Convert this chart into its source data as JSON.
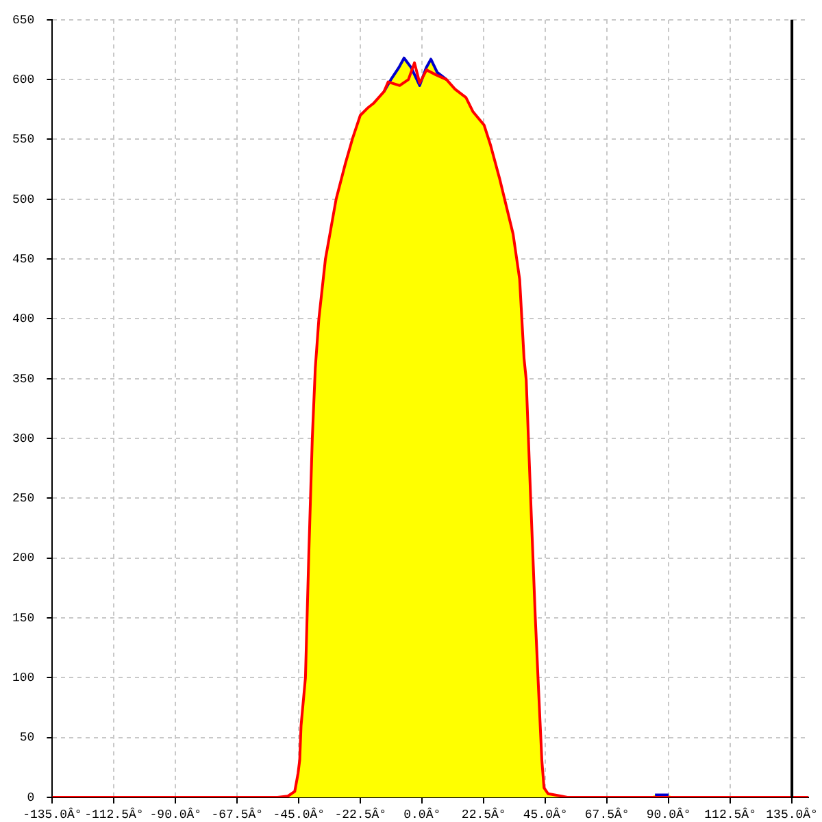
{
  "chart_data": {
    "xlim": [
      -135,
      141
    ],
    "xticks": [
      {
        "value": -135,
        "label": "-135.0Â°"
      },
      {
        "value": -112.5,
        "label": "-112.5Â°"
      },
      {
        "value": -90,
        "label": "-90.0Â°"
      },
      {
        "value": -67.5,
        "label": "-67.5Â°"
      },
      {
        "value": -45,
        "label": "-45.0Â°"
      },
      {
        "value": -22.5,
        "label": "-22.5Â°"
      },
      {
        "value": 0,
        "label": "0.0Â°"
      },
      {
        "value": 22.5,
        "label": "22.5Â°"
      },
      {
        "value": 45,
        "label": "45.0Â°"
      },
      {
        "value": 67.5,
        "label": "67.5Â°"
      },
      {
        "value": 90,
        "label": "90.0Â°"
      },
      {
        "value": 112.5,
        "label": "112.5Â°"
      },
      {
        "value": 135,
        "label": "135.0Â°"
      }
    ],
    "ylim": [
      0,
      650
    ],
    "yticks": [
      0,
      50,
      100,
      150,
      200,
      250,
      300,
      350,
      400,
      450,
      500,
      550,
      600,
      650
    ],
    "grid": true,
    "type": "line",
    "legend": false,
    "marker": "none",
    "line_style": "solid",
    "ref_lines": [
      {
        "axis": "x",
        "value": 135,
        "color": "#000000"
      }
    ],
    "series": [
      {
        "type": "line",
        "color": "#ff0000",
        "x": [
          -135,
          -52.8,
          -49,
          -46.5,
          -45.3,
          -44.7,
          -44.2,
          -42.6,
          -41.4,
          -40.1,
          -39,
          -37.7,
          -35.3,
          -31.4,
          -28,
          -25.5,
          -22.6,
          -20,
          -17.8,
          -13.9,
          -12.4,
          -8.2,
          -5,
          -2.8,
          -0.9,
          1.6,
          5,
          8.9,
          12,
          16,
          18.6,
          22.6,
          25,
          28.3,
          33.2,
          35.6,
          37.2,
          38,
          39.6,
          41.3,
          42.5,
          43.7,
          44.5,
          46,
          50.8,
          53,
          141
        ],
        "values": [
          0,
          0,
          1,
          5,
          20,
          31,
          60,
          100,
          201,
          300,
          359,
          400,
          450,
          500,
          530,
          550,
          570,
          576,
          580,
          590,
          598,
          595,
          600,
          614,
          597,
          608,
          604,
          600,
          592,
          585,
          573,
          562,
          545,
          517,
          471,
          433,
          367,
          349,
          251,
          151,
          90,
          31,
          8,
          3,
          1,
          0,
          0
        ]
      },
      {
        "type": "line",
        "color": "#0000cc",
        "x": [
          -13.9,
          -11.4,
          -8.5,
          -6.6,
          -4,
          -0.9,
          1.5,
          3.2,
          5.5,
          8.9,
          50,
          85,
          90
        ],
        "values": [
          590,
          600,
          610,
          618,
          610,
          595,
          610,
          617,
          606,
          600,
          null,
          2,
          2
        ]
      },
      {
        "type": "area",
        "color": "#ffff00",
        "x": [
          -135,
          -52.8,
          -49,
          -46.5,
          -45.3,
          -44.7,
          -44.2,
          -42.6,
          -41.4,
          -40.1,
          -39,
          -37.7,
          -35.3,
          -31.4,
          -28,
          -25.5,
          -22.6,
          -20,
          -17.8,
          -13.9,
          -11.4,
          -8.5,
          -6.6,
          -4,
          -0.9,
          1.5,
          3.2,
          5.5,
          8.9,
          12,
          16,
          18.6,
          22.6,
          25,
          28.3,
          33.2,
          35.6,
          37.2,
          38,
          39.6,
          41.3,
          42.5,
          43.7,
          44.5,
          46,
          50.8,
          53,
          83,
          85,
          90,
          92,
          141
        ],
        "values": [
          0,
          0,
          1,
          5,
          20,
          31,
          60,
          100,
          201,
          300,
          359,
          400,
          450,
          500,
          530,
          550,
          570,
          576,
          580,
          590,
          600,
          610,
          618,
          610,
          595,
          610,
          617,
          606,
          600,
          592,
          585,
          573,
          562,
          545,
          517,
          471,
          433,
          367,
          349,
          251,
          151,
          90,
          31,
          8,
          3,
          1,
          0,
          0,
          2,
          2,
          0,
          0
        ]
      }
    ]
  }
}
